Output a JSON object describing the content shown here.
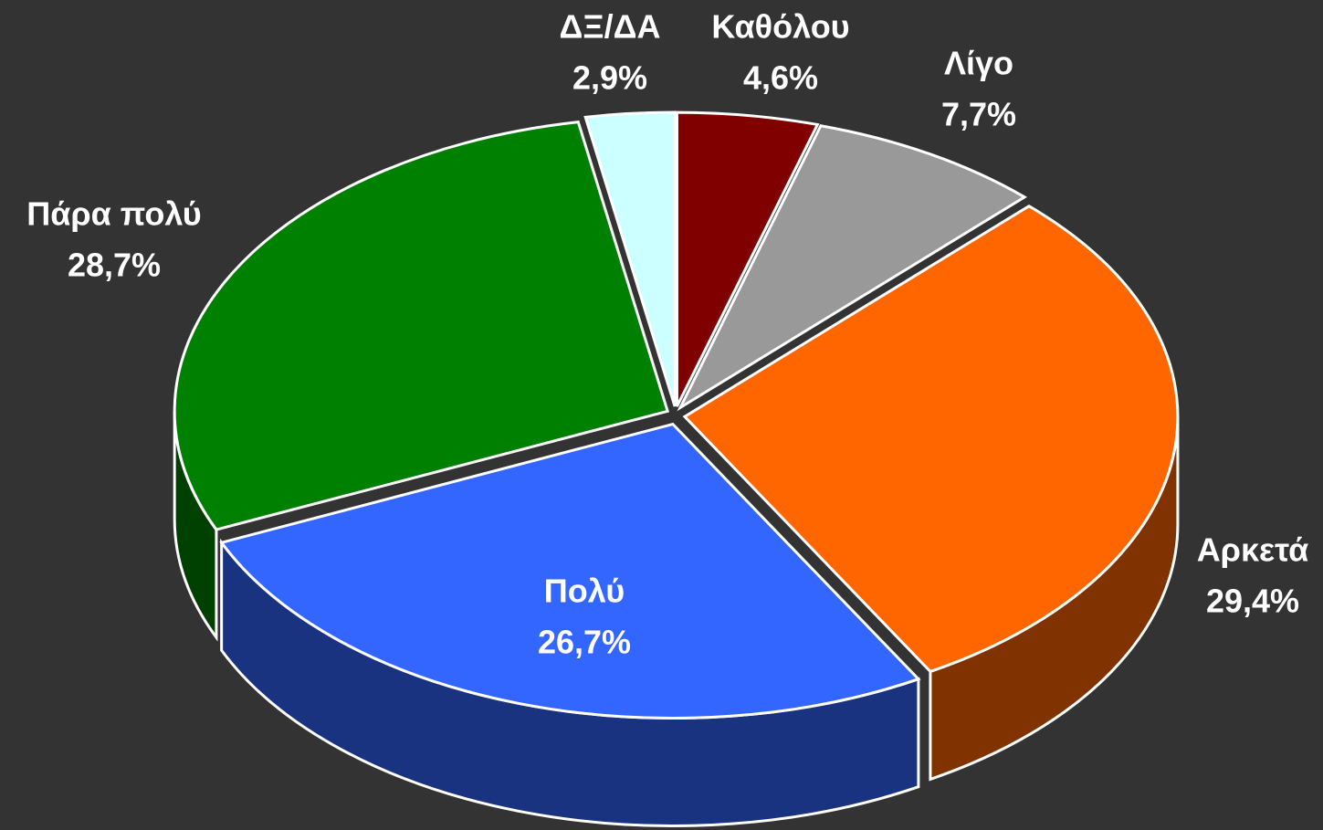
{
  "chart_data": {
    "type": "pie",
    "categories": [
      "Καθόλου",
      "Λίγο",
      "Αρκετά",
      "Πολύ",
      "Πάρα πολύ",
      "ΔΞ/ΔΑ"
    ],
    "values": [
      4.6,
      7.7,
      29.4,
      26.7,
      28.7,
      2.9
    ],
    "value_labels": [
      "4,6%",
      "7,7%",
      "29,4%",
      "26,7%",
      "28,7%",
      "2,9%"
    ],
    "colors": [
      "#800000",
      "#999999",
      "#ff6600",
      "#3366ff",
      "#008000",
      "#ccffff"
    ]
  }
}
